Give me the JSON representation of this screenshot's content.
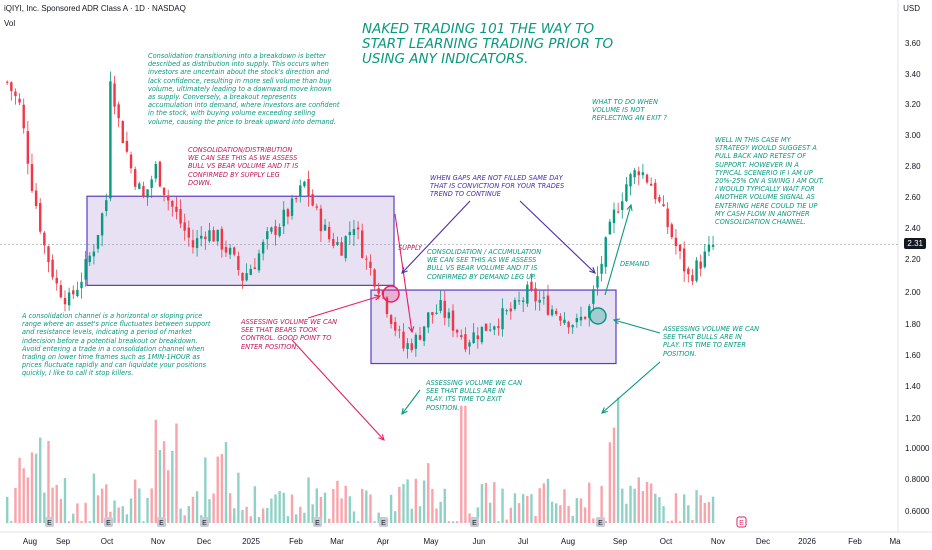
{
  "header": {
    "symbol_line": "iQIYI, Inc. Sponsored ADR Class A · 1D · NASDAQ",
    "volume_label": "Vol",
    "currency": "USD",
    "current_price": "2.31"
  },
  "chart_data": {
    "type": "candlestick",
    "y_axis_ticks": [
      "3.60",
      "3.40",
      "3.20",
      "3.00",
      "2.80",
      "2.60",
      "2.40",
      "2.20",
      "2.00",
      "1.80",
      "1.60",
      "1.40",
      "1.20",
      "1.0000",
      "0.8000",
      "0.6000"
    ],
    "x_axis_labels": [
      "Aug",
      "Sep",
      "Oct",
      "Nov",
      "Dec",
      "2025",
      "Feb",
      "Mar",
      "Apr",
      "May",
      "Jun",
      "Jul",
      "Aug",
      "Sep",
      "Oct",
      "Nov",
      "Dec",
      "2026",
      "Feb",
      "Ma"
    ],
    "price_path": [
      [
        0,
        3.35
      ],
      [
        3,
        3.2
      ],
      [
        6,
        2.7
      ],
      [
        9,
        2.3
      ],
      [
        12,
        2.05
      ],
      [
        15,
        1.95
      ],
      [
        18,
        2.1
      ],
      [
        21,
        2.3
      ],
      [
        24,
        2.6
      ],
      [
        25,
        3.4
      ],
      [
        27,
        3.1
      ],
      [
        30,
        2.8
      ],
      [
        33,
        2.6
      ],
      [
        36,
        2.8
      ],
      [
        39,
        2.6
      ],
      [
        42,
        2.45
      ],
      [
        45,
        2.3
      ],
      [
        48,
        2.4
      ],
      [
        51,
        2.35
      ],
      [
        54,
        2.25
      ],
      [
        57,
        2.1
      ],
      [
        60,
        2.2
      ],
      [
        63,
        2.35
      ],
      [
        66,
        2.45
      ],
      [
        69,
        2.55
      ],
      [
        72,
        2.7
      ],
      [
        75,
        2.5
      ],
      [
        78,
        2.35
      ],
      [
        81,
        2.3
      ],
      [
        84,
        2.45
      ],
      [
        87,
        2.2
      ],
      [
        90,
        2.05
      ],
      [
        93,
        1.85
      ],
      [
        96,
        1.65
      ],
      [
        99,
        1.7
      ],
      [
        102,
        1.85
      ],
      [
        105,
        1.9
      ],
      [
        108,
        1.8
      ],
      [
        111,
        1.7
      ],
      [
        114,
        1.75
      ],
      [
        117,
        1.8
      ],
      [
        120,
        1.85
      ],
      [
        123,
        1.9
      ],
      [
        126,
        2.0
      ],
      [
        129,
        1.95
      ],
      [
        132,
        1.9
      ],
      [
        135,
        1.85
      ],
      [
        138,
        1.8
      ],
      [
        141,
        1.9
      ],
      [
        144,
        2.2
      ],
      [
        147,
        2.5
      ],
      [
        150,
        2.7
      ],
      [
        153,
        2.8
      ],
      [
        156,
        2.7
      ],
      [
        159,
        2.5
      ],
      [
        162,
        2.3
      ],
      [
        165,
        2.1
      ],
      [
        168,
        2.2
      ],
      [
        171,
        2.3
      ]
    ],
    "volume_spikes_m": [
      0.7,
      0.9,
      1.05,
      0.95,
      0.75,
      0.7,
      0.65,
      0.85,
      0.8,
      0.7,
      0.75,
      0.7,
      1.25,
      1.05,
      0.7,
      0.75,
      0.9,
      0.95,
      0.8,
      0.7,
      0.72,
      0.75,
      0.7,
      0.65,
      0.8,
      0.9,
      0.75,
      0.7,
      0.65,
      0.68,
      0.72,
      0.7,
      0.75,
      0.8,
      0.85,
      0.7,
      0.65,
      0.7,
      0.75,
      0.72,
      0.7,
      0.68,
      0.7,
      0.73,
      0.75,
      0.7,
      0.72,
      0.75,
      0.7,
      1.3,
      0.8,
      0.75,
      0.72,
      0.7,
      0.68,
      0.7,
      0.72,
      0.7
    ],
    "zones": [
      {
        "name": "supply",
        "label": "SUPPLY",
        "y_low": 2.05,
        "y_high": 2.62
      },
      {
        "name": "demand",
        "label": "DEMAND",
        "y_low": 1.55,
        "y_high": 2.02
      }
    ]
  },
  "annotations": {
    "title": "NAKED TRADING 101 THE WAY TO\nSTART LEARNING TRADING PRIOR TO\nUSING ANY INDICATORS.",
    "consolidation_breakdown": "Consolidation transitioning into a breakdown is better\ndescribed as distribution into supply. This occurs when\ninvestors are uncertain about the stock's direction and\nlack confidence, resulting in more sell volume than buy\nvolume, ultimately leading to a downward move known\nas supply. Conversely, a breakout represents\naccumulation into demand, where investors are confident\nin the stock, with buying volume exceeding selling\nvolume, causing the price to break upward into demand.",
    "distribution_note": "CONSOLIDATION/DISTRIBUTION\nWE CAN SEE THIS AS WE ASSESS\nBULL VS BEAR VOLUME AND IT IS\nCONFIRMED BY SUPPLY LEG\nDOWN.",
    "gaps_note": "WHEN GAPS ARE NOT FILLED SAME DAY\nTHAT IS CONVICTION FOR YOUR TRADES\nTREND TO CONTINUE",
    "accumulation_note": "CONSOLIDATION / ACCUMULATION\nWE CAN SEE THIS AS WE ASSESS\nBULL VS BEAR VOLUME AND IT IS\nCONFIRMED BY DEMAND LEG UP.",
    "what_to_do": "WHAT TO DO WHEN\nVOLUME IS NOT\nREFLECTING AN EXIT ?",
    "strategy_note": "WELL IN THIS CASE MY\nSTRATEGY WOULD SUGGEST A\nPULL BACK AND RETEST OF\nSUPPORT. HOWEVER IN A\nTYPICAL SCENERIO IF I AM UP\n20%-25% ON A SWING I AM OUT.\nI WOULD TYPICALLY WAIT FOR\nANOTHER VOLUME SIGNAL AS\nENTERING HERE COULD TIE UP\nMY CASH FLOW IN ANOTHER\nCONSOLIDATION CHANNEL.",
    "channel_definition": "A consolidation channel is a horizontal or sloping price\nrange where an asset's price fluctuates between support\nand resistance levels, indicating a period of market\nindecision before a potential breakout or breakdown.\nAvoid entering a trade in a consolidation channel when\ntrading on lower time frames such as 1MIN-1HOUR as\nprices fluctuate rapidly and can liquidate your positions\nquickly, I like to call it stop killers.",
    "bears_control": "ASSESSING VOLUME WE CAN\nSEE THAT BEARS TOOK\nCONTROL. GOOD POINT TO\nENTER POSITION.",
    "bulls_exit": "ASSESSING VOLUME WE CAN\nSEE THAT BULLS ARE IN\nPLAY. ITS TIME TO EXIT\nPOSITION.",
    "bulls_enter": "ASSESSING VOLUME WE CAN\nSEE THAT BULLS ARE IN\nPLAY. ITS TIME TO ENTER\nPOSITION.",
    "supply_label": "SUPPLY",
    "demand_label": "DEMAND"
  },
  "colors": {
    "up": "#089981",
    "down": "#f23645",
    "zone_fill": "rgba(149,117,205,0.22)",
    "zone_border": "#5b3cc4",
    "pink": "#e91e63",
    "green_note": "#089981"
  },
  "earnings_markers": [
    "E",
    "E",
    "E",
    "E",
    "E",
    "E",
    "E",
    "E",
    "E"
  ]
}
